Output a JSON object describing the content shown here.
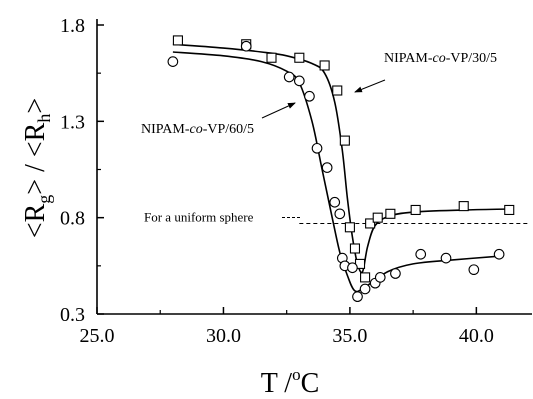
{
  "chart_data": {
    "type": "scatter",
    "title": "",
    "xlabel": "T /",
    "xlabel_degree": "o",
    "xlabel_unit": "C",
    "ylabel": {
      "open": "<",
      "R1": "R",
      "sub1": "g",
      "mid": "> / <",
      "R2": "R",
      "sub2": "h",
      "close": ">"
    },
    "xlim": [
      25.0,
      42.2
    ],
    "ylim": [
      0.3,
      1.8
    ],
    "x_ticks": [
      25.0,
      30.0,
      35.0,
      40.0
    ],
    "x_tick_labels": [
      "25.0",
      "30.0",
      "35.0",
      "40.0"
    ],
    "y_ticks": [
      0.3,
      0.8,
      1.3,
      1.8
    ],
    "y_tick_labels": [
      "0.3",
      "0.8",
      "1.3",
      "1.8"
    ],
    "grid": false,
    "legend": "none",
    "series": [
      {
        "name": "NIPAM-co-VP/30/5",
        "label_parts": [
          "NIPAM-",
          "co",
          "-VP/30/5"
        ],
        "marker": "square",
        "points": [
          [
            28.2,
            1.72
          ],
          [
            30.9,
            1.7
          ],
          [
            31.9,
            1.63
          ],
          [
            33.0,
            1.63
          ],
          [
            34.0,
            1.59
          ],
          [
            34.5,
            1.46
          ],
          [
            34.8,
            1.2
          ],
          [
            35.0,
            0.75
          ],
          [
            35.2,
            0.64
          ],
          [
            35.4,
            0.56
          ],
          [
            35.6,
            0.49
          ],
          [
            35.8,
            0.77
          ],
          [
            36.1,
            0.8
          ],
          [
            36.6,
            0.82
          ],
          [
            37.6,
            0.84
          ],
          [
            39.5,
            0.86
          ],
          [
            41.3,
            0.84
          ]
        ],
        "fit": [
          [
            28.0,
            1.7
          ],
          [
            30.0,
            1.68
          ],
          [
            31.5,
            1.66
          ],
          [
            32.5,
            1.64
          ],
          [
            33.5,
            1.6
          ],
          [
            34.0,
            1.55
          ],
          [
            34.4,
            1.4
          ],
          [
            34.7,
            1.15
          ],
          [
            34.9,
            0.9
          ],
          [
            35.1,
            0.7
          ],
          [
            35.3,
            0.56
          ],
          [
            35.5,
            0.52
          ],
          [
            35.7,
            0.65
          ],
          [
            36.0,
            0.76
          ],
          [
            36.6,
            0.81
          ],
          [
            37.6,
            0.83
          ],
          [
            39.5,
            0.84
          ],
          [
            41.3,
            0.845
          ]
        ]
      },
      {
        "name": "NIPAM-co-VP/60/5",
        "label_parts": [
          "NIPAM-",
          "co",
          "-VP/60/5"
        ],
        "marker": "circle",
        "points": [
          [
            28.0,
            1.61
          ],
          [
            30.9,
            1.69
          ],
          [
            32.6,
            1.53
          ],
          [
            33.0,
            1.51
          ],
          [
            33.4,
            1.43
          ],
          [
            33.7,
            1.16
          ],
          [
            34.1,
            1.06
          ],
          [
            34.4,
            0.88
          ],
          [
            34.6,
            0.82
          ],
          [
            34.7,
            0.59
          ],
          [
            34.8,
            0.55
          ],
          [
            35.1,
            0.54
          ],
          [
            35.3,
            0.39
          ],
          [
            35.6,
            0.43
          ],
          [
            36.0,
            0.46
          ],
          [
            36.2,
            0.49
          ],
          [
            36.8,
            0.51
          ],
          [
            37.8,
            0.61
          ],
          [
            38.8,
            0.59
          ],
          [
            39.9,
            0.53
          ],
          [
            40.9,
            0.61
          ]
        ],
        "fit": [
          [
            28.0,
            1.66
          ],
          [
            30.0,
            1.64
          ],
          [
            31.5,
            1.61
          ],
          [
            32.5,
            1.56
          ],
          [
            33.0,
            1.5
          ],
          [
            33.5,
            1.3
          ],
          [
            33.9,
            1.05
          ],
          [
            34.3,
            0.8
          ],
          [
            34.6,
            0.62
          ],
          [
            34.9,
            0.5
          ],
          [
            35.2,
            0.42
          ],
          [
            35.6,
            0.44
          ],
          [
            36.5,
            0.52
          ],
          [
            37.5,
            0.56
          ],
          [
            39.0,
            0.58
          ],
          [
            40.9,
            0.6
          ]
        ]
      }
    ],
    "reference_line": {
      "y": 0.77,
      "x_range": [
        33.0,
        42.2
      ],
      "label": "For a uniform sphere"
    }
  }
}
